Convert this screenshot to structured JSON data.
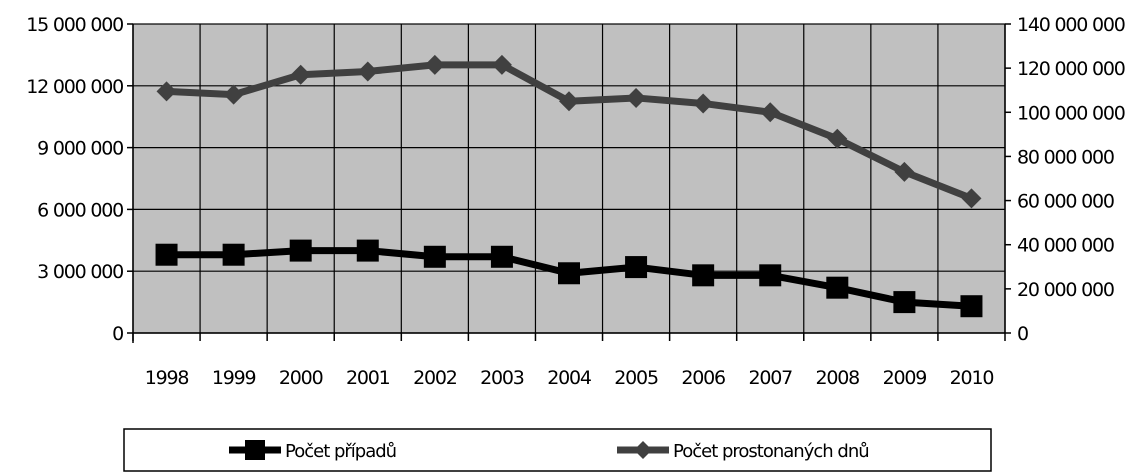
{
  "chart_data": {
    "type": "line",
    "categories": [
      "1998",
      "1999",
      "2000",
      "2001",
      "2002",
      "2003",
      "2004",
      "2005",
      "2006",
      "2007",
      "2008",
      "2009",
      "2010"
    ],
    "series": [
      {
        "name": "Počet případů",
        "axis": "left",
        "marker": "square",
        "color": "#000000",
        "values": [
          3800000,
          3800000,
          4000000,
          4000000,
          3700000,
          3700000,
          2900000,
          3200000,
          2800000,
          2800000,
          2200000,
          1500000,
          1300000
        ]
      },
      {
        "name": "Počet prostonaných dnů",
        "axis": "right",
        "marker": "diamond",
        "color": "#404040",
        "values": [
          109500000,
          108000000,
          117000000,
          118500000,
          121500000,
          121500000,
          105000000,
          106500000,
          104000000,
          100000000,
          88000000,
          73000000,
          61000000
        ]
      }
    ],
    "y_left": {
      "ylim": [
        0,
        15000000
      ],
      "ticks": [
        0,
        3000000,
        6000000,
        9000000,
        12000000,
        15000000
      ],
      "tick_labels": [
        "0",
        "3 000 000",
        "6 000 000",
        "9 000 000",
        "12 000 000",
        "15 000 000"
      ]
    },
    "y_right": {
      "ylim": [
        0,
        140000000
      ],
      "ticks": [
        0,
        20000000,
        40000000,
        60000000,
        80000000,
        100000000,
        120000000,
        140000000
      ],
      "tick_labels": [
        "0",
        "20 000 000",
        "40 000 000",
        "60 000 000",
        "80 000 000",
        "100 000 000",
        "120 000 000",
        "140 000 000"
      ]
    },
    "grid": true,
    "plot_background": "#c0c0c0",
    "legend_position": "bottom",
    "title": "",
    "xlabel": "",
    "ylabel": ""
  }
}
